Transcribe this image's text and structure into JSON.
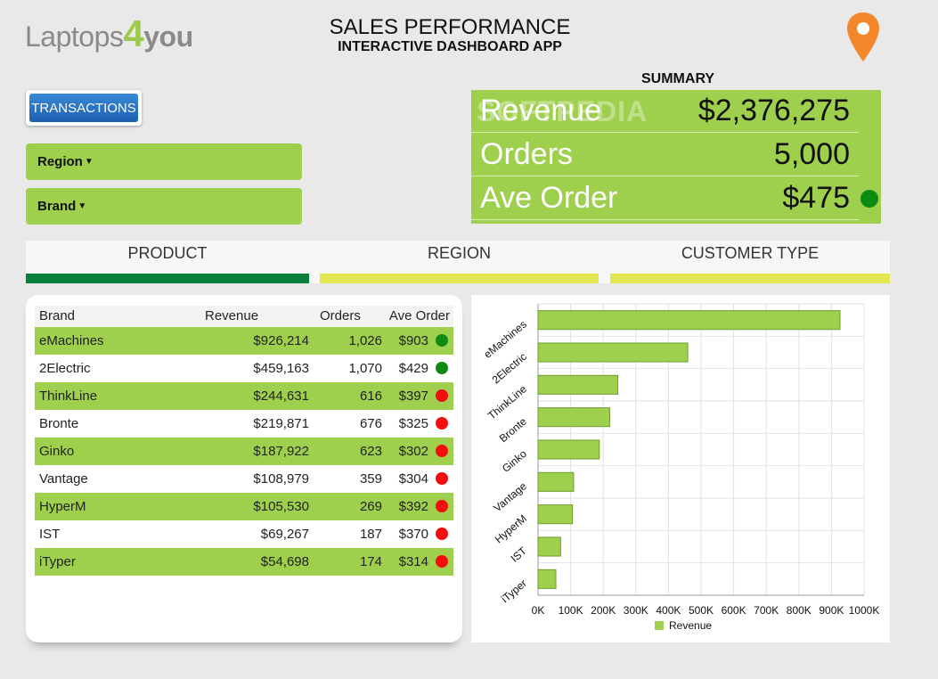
{
  "header": {
    "logo_a": "Laptops",
    "logo_b": "4",
    "logo_c": "you",
    "title": "SALES PERFORMANCE",
    "subtitle": "INTERACTIVE DASHBOARD APP",
    "pin_icon": "map-pin-icon"
  },
  "controls": {
    "transactions_label": "TRANSACTIONS",
    "region_label": "Region",
    "brand_label": "Brand",
    "chevron_icon": "chevron-down-icon"
  },
  "summary": {
    "label": "SUMMARY",
    "watermark": "SOFTPEDIA",
    "rows": [
      {
        "key": "Revenue",
        "value": "$2,376,275"
      },
      {
        "key": "Orders",
        "value": "5,000"
      },
      {
        "key": "Ave Order",
        "value": "$475"
      }
    ],
    "indicator_color": "#0c8a12"
  },
  "tabs": [
    {
      "label": "PRODUCT",
      "bar_color": "#0a7f3c"
    },
    {
      "label": "REGION",
      "bar_color": "#e4e651"
    },
    {
      "label": "CUSTOMER TYPE",
      "bar_color": "#e4e651"
    }
  ],
  "table": {
    "headers": [
      "Brand",
      "Revenue",
      "Orders",
      "Ave Order"
    ],
    "rows": [
      {
        "brand": "eMachines",
        "revenue": "$926,214",
        "orders": "1,026",
        "ave": "$903",
        "status": "green"
      },
      {
        "brand": "2Electric",
        "revenue": "$459,163",
        "orders": "1,070",
        "ave": "$429",
        "status": "green"
      },
      {
        "brand": "ThinkLine",
        "revenue": "$244,631",
        "orders": "616",
        "ave": "$397",
        "status": "red"
      },
      {
        "brand": "Bronte",
        "revenue": "$219,871",
        "orders": "676",
        "ave": "$325",
        "status": "red"
      },
      {
        "brand": "Ginko",
        "revenue": "$187,922",
        "orders": "623",
        "ave": "$302",
        "status": "red"
      },
      {
        "brand": "Vantage",
        "revenue": "$108,979",
        "orders": "359",
        "ave": "$304",
        "status": "red"
      },
      {
        "brand": "HyperM",
        "revenue": "$105,530",
        "orders": "269",
        "ave": "$392",
        "status": "red"
      },
      {
        "brand": "IST",
        "revenue": "$69,267",
        "orders": "187",
        "ave": "$370",
        "status": "red"
      },
      {
        "brand": "iTyper",
        "revenue": "$54,698",
        "orders": "174",
        "ave": "$314",
        "status": "red"
      }
    ],
    "status_colors": {
      "green": "#0c8a12",
      "red": "#f40d0d"
    }
  },
  "chart_data": {
    "type": "bar",
    "orientation": "horizontal",
    "categories": [
      "eMachines",
      "2Electric",
      "ThinkLine",
      "Bronte",
      "Ginko",
      "Vantage",
      "HyperM",
      "IST",
      "iTyper"
    ],
    "series": [
      {
        "name": "Revenue",
        "values": [
          926214,
          459163,
          244631,
          219871,
          187922,
          108979,
          105530,
          69267,
          54698
        ]
      }
    ],
    "xlim": [
      0,
      1000000
    ],
    "x_ticks": [
      "0K",
      "100K",
      "200K",
      "300K",
      "400K",
      "500K",
      "600K",
      "700K",
      "800K",
      "900K",
      "1000K"
    ],
    "grid": true,
    "legend": "bottom",
    "bar_color": "#9fd04d"
  }
}
